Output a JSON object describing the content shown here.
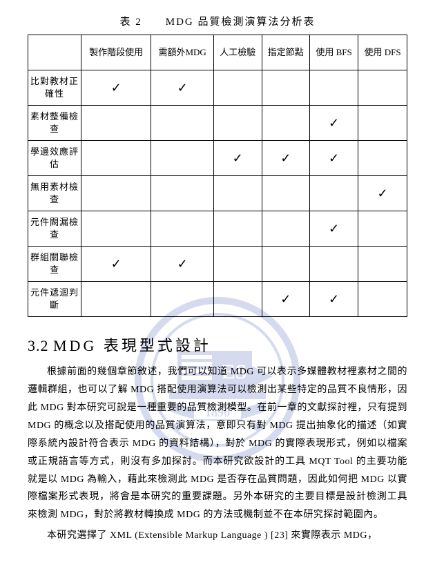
{
  "caption": "表 2　　MDG 品質檢測演算法分析表",
  "table": {
    "columns": [
      "",
      "製作階段使用",
      "需額外MDG",
      "人工檢驗",
      "指定節點",
      "使用 BFS",
      "使用 DFS"
    ],
    "rows": [
      {
        "label": "比對教材正確性",
        "cells": [
          true,
          true,
          false,
          false,
          false,
          false
        ]
      },
      {
        "label": "素材整備檢查",
        "cells": [
          false,
          false,
          false,
          false,
          true,
          false
        ]
      },
      {
        "label": "學邊效應評估",
        "cells": [
          false,
          false,
          true,
          true,
          true,
          false
        ]
      },
      {
        "label": "無用素材檢查",
        "cells": [
          false,
          false,
          false,
          false,
          false,
          true
        ]
      },
      {
        "label": "元件闕漏檢查",
        "cells": [
          false,
          false,
          false,
          false,
          true,
          false
        ]
      },
      {
        "label": "群組關聯檢查",
        "cells": [
          true,
          true,
          false,
          false,
          false,
          false
        ]
      },
      {
        "label": "元件遞迴判斷",
        "cells": [
          false,
          false,
          false,
          true,
          true,
          false
        ]
      }
    ],
    "check_glyph": "✓"
  },
  "section_number": "3.2",
  "section_title_zh": "MDG 表現型式設計",
  "para1": "根據前面的幾個章節敘述，我們可以知道 MDG 可以表示多媒體教材裡素材之間的邏輯群組，也可以了解 MDG 搭配使用演算法可以檢測出某些特定的品質不良情形，因此 MDG 對本研究可說是一種重要的品質檢測模型。在前一章的文獻探討裡，只有提到 MDG 的概念以及搭配使用的品質演算法，意即只有對 MDG 提出抽象化的描述（如實際系統內設計符合表示 MDG 的資料結構），對於 MDG 的實際表現形式，例如以檔案或正規語言等方式，則沒有多加探討。而本研究欲設計的工具 MQT Tool 的主要功能就是以 MDG 為輸入，藉此來檢測此 MDG 是否存在品質問題，因此如何把 MDG 以實際檔案形式表現，將會是本研究的重要課題。另外本研究的主要目標是設計檢測工具來檢測 MDG，對於將教材轉換成 MDG 的方法或機制並不在本研究探討範圍內。",
  "para2": "本研究選擇了 XML (Extensible Markup Language ) [23]  來實際表示 MDG，",
  "watermark": {
    "ring_color": "#8b96d1",
    "inner_bg": "#ffffff",
    "text": "E S",
    "year": "1896"
  }
}
